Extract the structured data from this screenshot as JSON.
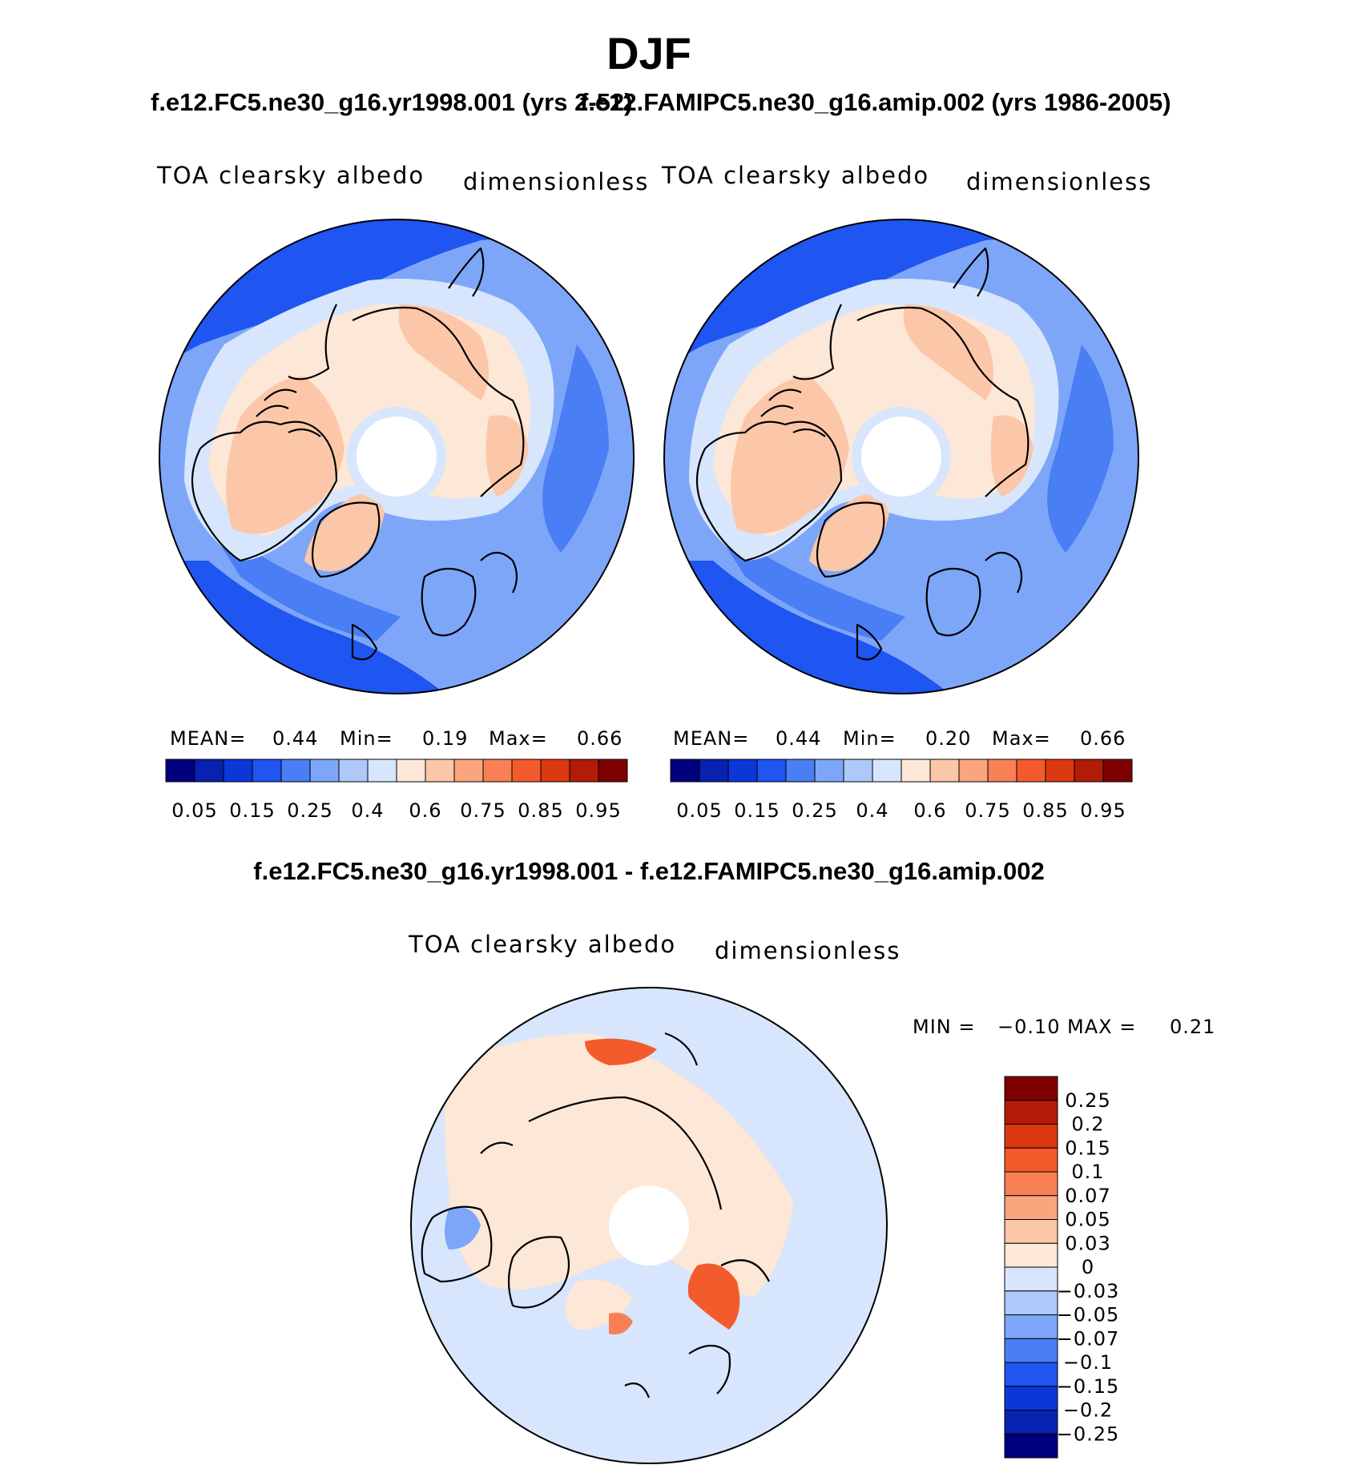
{
  "title": "DJF",
  "panels": [
    {
      "case_title": "f.e12.FC5.ne30_g16.yr1998.001 (yrs 2-52)",
      "variable": "TOA clearsky albedo",
      "units": "dimensionless",
      "stats": {
        "mean_label": "MEAN=",
        "mean": "0.44",
        "min_label": "Min=",
        "min": "0.19",
        "max_label": "Max=",
        "max": "0.66"
      }
    },
    {
      "case_title": "f.e12.FAMIPC5.ne30_g16.amip.002 (yrs 1986-2005)",
      "variable": "TOA clearsky albedo",
      "units": "dimensionless",
      "stats": {
        "mean_label": "MEAN=",
        "mean": "0.44",
        "min_label": "Min=",
        "min": "0.20",
        "max_label": "Max=",
        "max": "0.66"
      }
    }
  ],
  "difference": {
    "title": "f.e12.FC5.ne30_g16.yr1998.001 - f.e12.FAMIPC5.ne30_g16.amip.002",
    "variable": "TOA clearsky albedo",
    "units": "dimensionless",
    "min_label": "MIN =",
    "min": "−0.10",
    "max_label": "MAX =",
    "max": "0.21"
  },
  "chart_data": [
    {
      "type": "heatmap",
      "projection": "north polar stereographic",
      "title": "f.e12.FC5.ne30_g16.yr1998.001 (yrs 2-52)",
      "variable": "TOA clearsky albedo",
      "units": "dimensionless",
      "levels": [
        "0.05",
        "0.15",
        "0.25",
        "0.4",
        "0.6",
        "0.75",
        "0.85",
        "0.95"
      ],
      "colors": [
        "#00007f",
        "#0722b0",
        "#0c37d8",
        "#1f55f0",
        "#4a7ef5",
        "#7ea6f8",
        "#aec8fa",
        "#d7e6fc",
        "#fde7d6",
        "#fcc7a8",
        "#fba57e",
        "#f98055",
        "#f45b2c",
        "#dc3810",
        "#b21c06",
        "#7f0000"
      ],
      "mean": 0.44,
      "min": 0.19,
      "max": 0.66
    },
    {
      "type": "heatmap",
      "projection": "north polar stereographic",
      "title": "f.e12.FAMIPC5.ne30_g16.amip.002 (yrs 1986-2005)",
      "variable": "TOA clearsky albedo",
      "units": "dimensionless",
      "levels": [
        "0.05",
        "0.15",
        "0.25",
        "0.4",
        "0.6",
        "0.75",
        "0.85",
        "0.95"
      ],
      "colors": [
        "#00007f",
        "#0722b0",
        "#0c37d8",
        "#1f55f0",
        "#4a7ef5",
        "#7ea6f8",
        "#aec8fa",
        "#d7e6fc",
        "#fde7d6",
        "#fcc7a8",
        "#fba57e",
        "#f98055",
        "#f45b2c",
        "#dc3810",
        "#b21c06",
        "#7f0000"
      ],
      "mean": 0.44,
      "min": 0.2,
      "max": 0.66
    },
    {
      "type": "heatmap",
      "projection": "north polar stereographic",
      "title": "f.e12.FC5.ne30_g16.yr1998.001 - f.e12.FAMIPC5.ne30_g16.amip.002",
      "variable": "TOA clearsky albedo",
      "units": "dimensionless",
      "levels": [
        "0.25",
        "0.2",
        "0.15",
        "0.1",
        "0.07",
        "0.05",
        "0.03",
        "0",
        "−0.03",
        "−0.05",
        "−0.07",
        "−0.1",
        "−0.15",
        "−0.2",
        "−0.25"
      ],
      "colors": [
        "#7f0000",
        "#b21c06",
        "#dc3810",
        "#f45b2c",
        "#f98055",
        "#fba57e",
        "#fcc7a8",
        "#fde7d6",
        "#d7e6fc",
        "#aec8fa",
        "#7ea6f8",
        "#4a7ef5",
        "#1f55f0",
        "#0c37d8",
        "#0722b0",
        "#00007f"
      ],
      "min": -0.1,
      "max": 0.21
    }
  ]
}
